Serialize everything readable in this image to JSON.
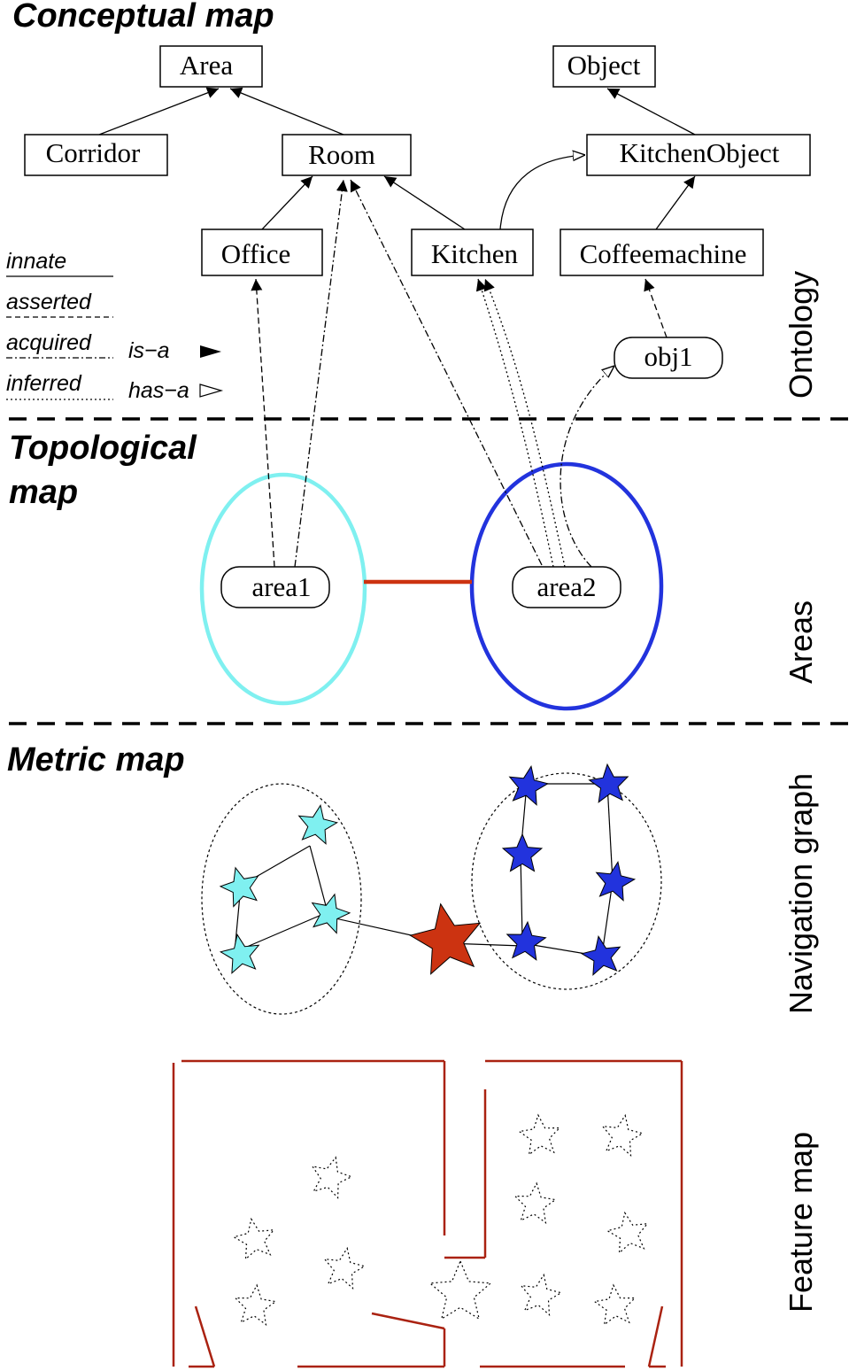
{
  "sections": {
    "conceptual": "Conceptual map",
    "topological_line1": "Topological",
    "topological_line2": "map",
    "metric": "Metric map"
  },
  "layers": {
    "ontology": "Ontology",
    "areas": "Areas",
    "navigation": "Navigation graph",
    "feature": "Feature map"
  },
  "concepts": {
    "area": "Area",
    "object": "Object",
    "corridor": "Corridor",
    "room": "Room",
    "kitchen_object": "KitchenObject",
    "office": "Office",
    "kitchen": "Kitchen",
    "coffeemachine": "Coffeemachine",
    "obj1": "obj1"
  },
  "instances": {
    "area1": "area1",
    "area2": "area2"
  },
  "legend": {
    "innate": "innate",
    "asserted": "asserted",
    "acquired": "acquired",
    "inferred": "inferred",
    "is_a": "is−a",
    "has_a": "has−a"
  },
  "colors": {
    "area1": "#7ff0f0",
    "area2": "#2233dd",
    "doorway": "#cc3311",
    "walls": "#aa2211"
  }
}
